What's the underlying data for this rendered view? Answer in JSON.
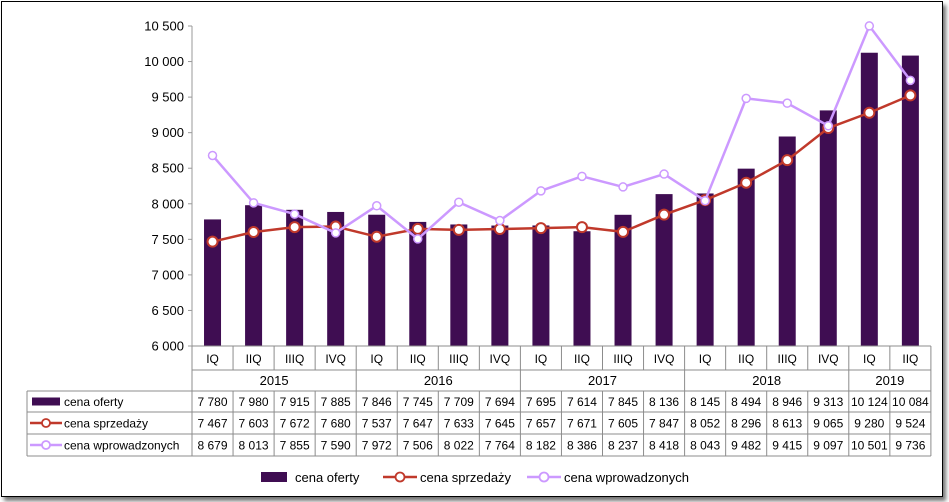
{
  "chart_data": {
    "type": "bar",
    "quarters": [
      "IQ",
      "IIQ",
      "IIIQ",
      "IVQ",
      "IQ",
      "IIQ",
      "IIIQ",
      "IVQ",
      "IQ",
      "IIQ",
      "IIIQ",
      "IVQ",
      "IQ",
      "IIQ",
      "IIIQ",
      "IVQ",
      "IQ",
      "IIQ"
    ],
    "years": [
      {
        "label": "2015",
        "span": 4
      },
      {
        "label": "2016",
        "span": 4
      },
      {
        "label": "2017",
        "span": 4
      },
      {
        "label": "2018",
        "span": 4
      },
      {
        "label": "2019",
        "span": 2
      }
    ],
    "ylim": [
      6000,
      10500
    ],
    "yticks": [
      6000,
      6500,
      7000,
      7500,
      8000,
      8500,
      9000,
      9500,
      10000,
      10500
    ],
    "ytick_labels": [
      "6 000",
      "6 500",
      "7 000",
      "7 500",
      "8 000",
      "8 500",
      "9 000",
      "9 500",
      "10 000",
      "10 500"
    ],
    "grid": false,
    "legend_position": "bottom",
    "series": [
      {
        "name": "cena oferty",
        "kind": "bar",
        "color": "#3f0d52",
        "values": [
          7780,
          7980,
          7915,
          7885,
          7846,
          7745,
          7709,
          7694,
          7695,
          7614,
          7845,
          8136,
          8145,
          8494,
          8946,
          9313,
          10124,
          10084
        ],
        "labels": [
          "7 780",
          "7 980",
          "7 915",
          "7 885",
          "7 846",
          "7 745",
          "7 709",
          "7 694",
          "7 695",
          "7 614",
          "7 845",
          "8 136",
          "8 145",
          "8 494",
          "8 946",
          "9 313",
          "10 124",
          "10 084"
        ]
      },
      {
        "name": "cena sprzedaży",
        "kind": "line",
        "color": "#c0392b",
        "values": [
          7467,
          7603,
          7672,
          7680,
          7537,
          7647,
          7633,
          7645,
          7657,
          7671,
          7605,
          7847,
          8052,
          8296,
          8613,
          9065,
          9280,
          9524
        ],
        "labels": [
          "7 467",
          "7 603",
          "7 672",
          "7 680",
          "7 537",
          "7 647",
          "7 633",
          "7 645",
          "7 657",
          "7 671",
          "7 605",
          "7 847",
          "8 052",
          "8 296",
          "8 613",
          "9 065",
          "9 280",
          "9 524"
        ]
      },
      {
        "name": "cena wprowadzonych",
        "kind": "line",
        "color": "#cc99ff",
        "values": [
          8679,
          8013,
          7855,
          7590,
          7972,
          7506,
          8022,
          7764,
          8182,
          8386,
          8237,
          8418,
          8043,
          9482,
          9415,
          9097,
          10501,
          9736
        ],
        "labels": [
          "8 679",
          "8 013",
          "7 855",
          "7 590",
          "7 972",
          "7 506",
          "8 022",
          "7 764",
          "8 182",
          "8 386",
          "8 237",
          "8 418",
          "8 043",
          "9 482",
          "9 415",
          "9 097",
          "10 501",
          "9 736"
        ]
      }
    ]
  }
}
